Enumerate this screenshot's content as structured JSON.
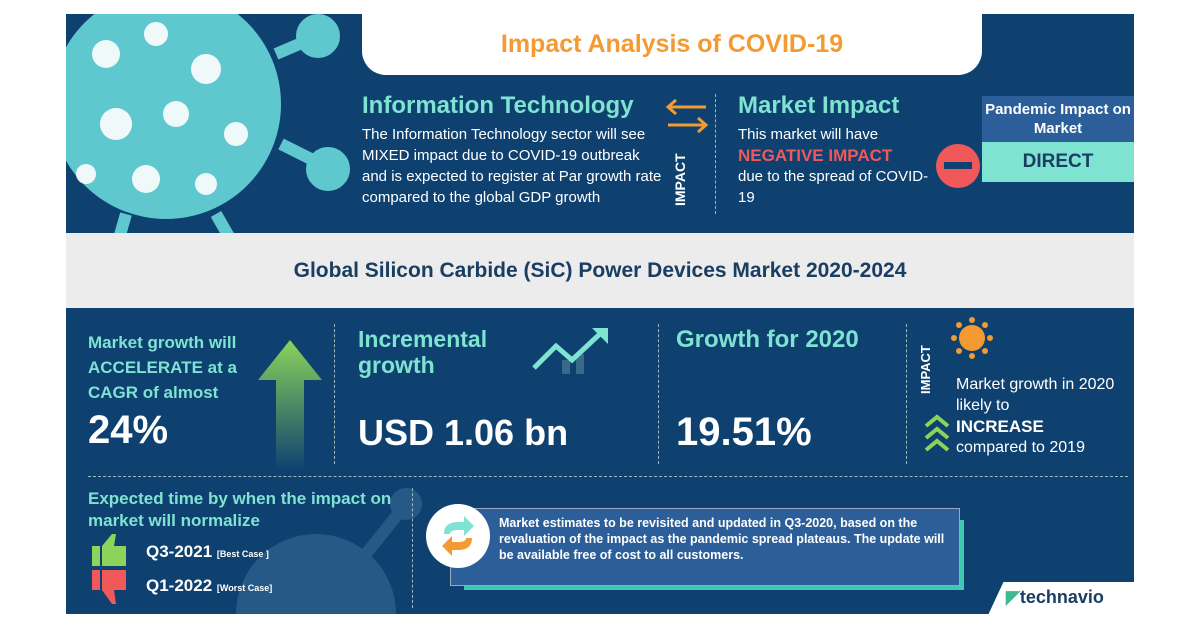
{
  "tab_title": "Impact Analysis of COVID-19",
  "sector": {
    "title": "Information Technology",
    "text": "The Information Technology sector will see MIXED  impact due to COVID-19 outbreak and is expected to register at Par growth rate compared to the global GDP growth"
  },
  "impact_label": "IMPACT",
  "market_impact": {
    "title": "Market Impact",
    "text_before": "This market will have",
    "highlight": "NEGATIVE IMPACT",
    "text_after": "due to the spread of COVID-19"
  },
  "pandemic": {
    "label": "Pandemic Impact on Market",
    "value": "DIRECT"
  },
  "market_title": "Global Silicon Carbide (SiC) Power Devices Market 2020-2024",
  "cagr": {
    "text": "Market growth will ACCELERATE at a CAGR of almost",
    "value": "24%"
  },
  "incremental": {
    "title": "Incremental growth",
    "value": "USD 1.06 bn"
  },
  "growth2020": {
    "title": "Growth for 2020",
    "value": "19.51%"
  },
  "impact2020": {
    "label": "IMPACT",
    "text_before": "Market growth in 2020 likely to",
    "highlight": "INCREASE",
    "text_after": "compared to 2019"
  },
  "normalize": {
    "title": "Expected time by when the impact on market will normalize",
    "best": {
      "value": "Q3-2021",
      "label": "[Best Case ]"
    },
    "worst": {
      "value": "Q1-2022",
      "label": "[Worst Case]"
    }
  },
  "note": "Market estimates to be revisited and updated in Q3-2020, based on the revaluation of the impact as the pandemic spread plateaus. The update will be available free of cost to all customers.",
  "brand": "technavio",
  "colors": {
    "background": "#0f4170",
    "accent_teal": "#7fe3d2",
    "accent_orange": "#f39a32",
    "negative": "#f0585a",
    "green": "#8bd35a"
  }
}
